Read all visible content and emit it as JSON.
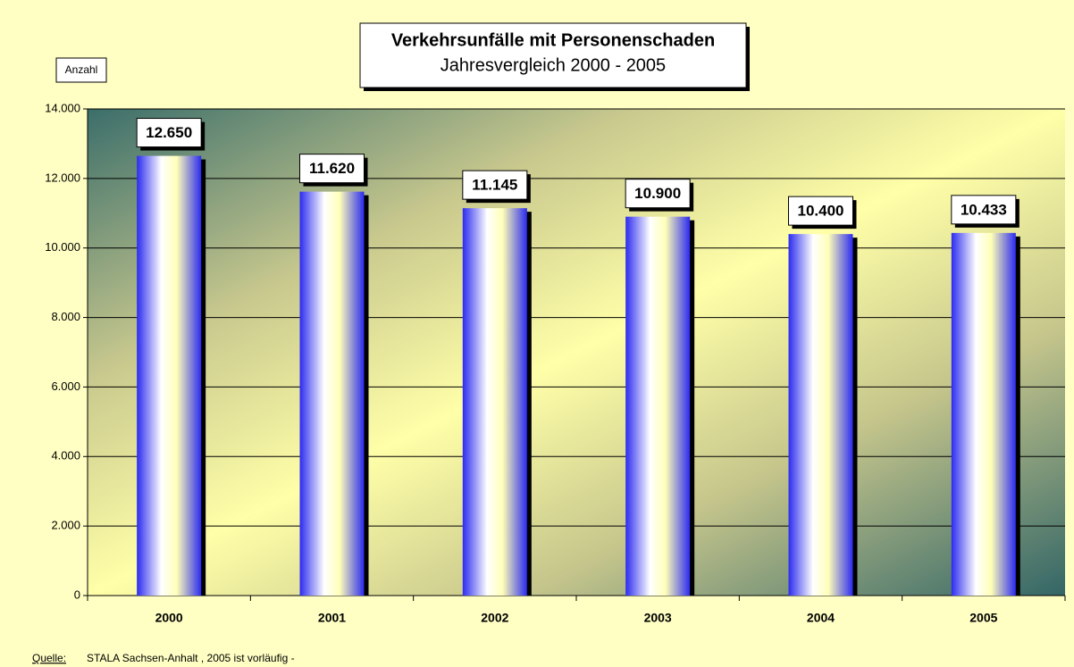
{
  "chart_data": {
    "type": "bar",
    "title": "Verkehrsunfälle mit Personenschaden",
    "subtitle": "Jahresvergleich 2000 - 2005",
    "y_label": "Anzahl",
    "source_label": "Quelle:",
    "source": "STALA Sachsen-Anhalt , 2005 ist vorläufig -",
    "categories": [
      "2000",
      "2001",
      "2002",
      "2003",
      "2004",
      "2005"
    ],
    "values": [
      12650,
      11620,
      11145,
      10900,
      10400,
      10433
    ],
    "value_labels": [
      "12.650",
      "11.620",
      "11.145",
      "10.900",
      "10.400",
      "10.433"
    ],
    "color": "#2b2bf0",
    "ylim": [
      0,
      14000
    ],
    "yticks": [
      0,
      {
        "value": 2000,
        "label": "2.000"
      },
      {
        "value": 4000,
        "label": "4.000"
      },
      {
        "value": 6000,
        "label": "6.000"
      },
      {
        "value": 8000,
        "label": "8.000"
      },
      {
        "value": 10000,
        "label": "10.000"
      },
      {
        "value": 12000,
        "label": "12.000"
      },
      {
        "value": 14000,
        "label": "14.000"
      }
    ],
    "grid": true
  }
}
